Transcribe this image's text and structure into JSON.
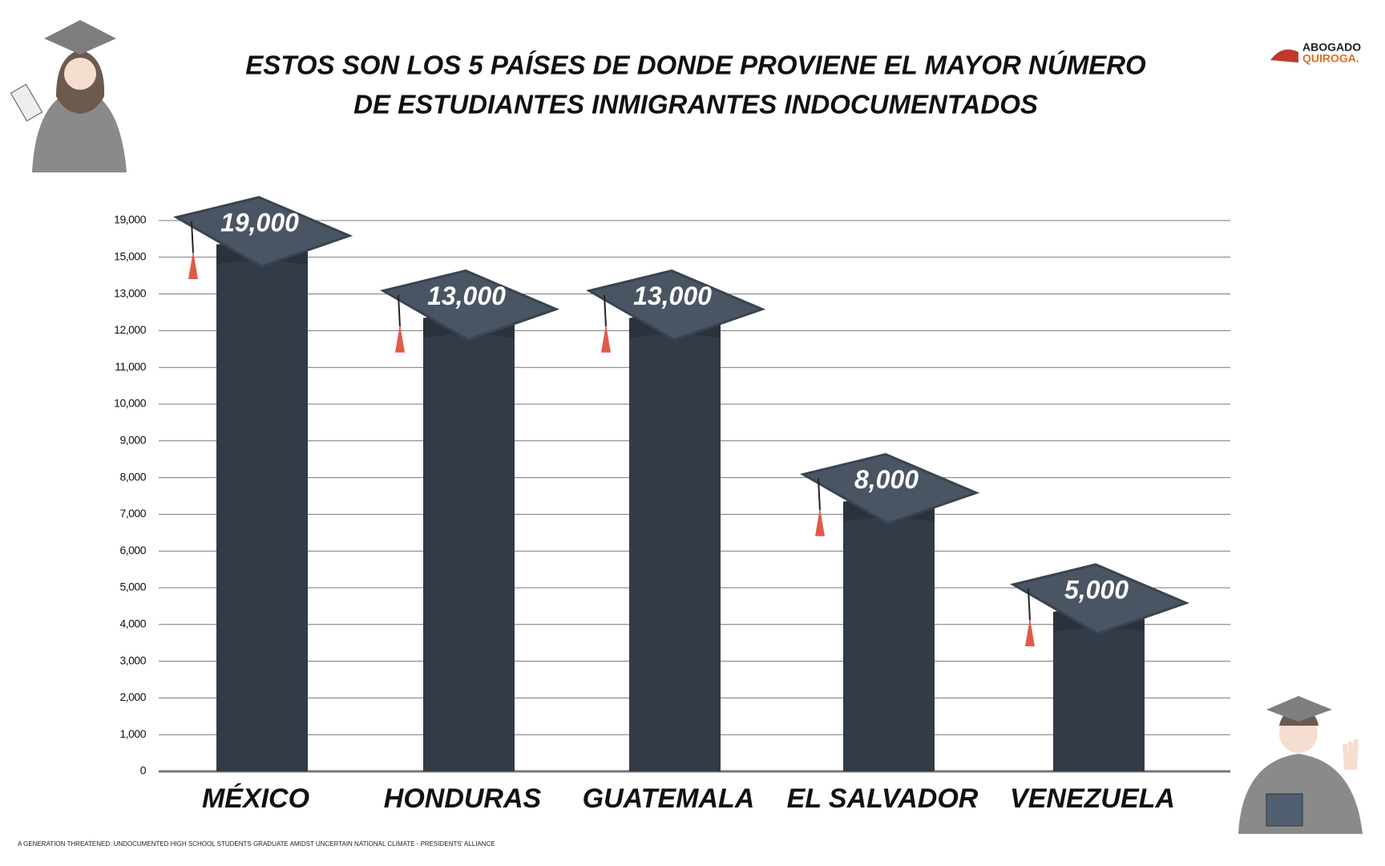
{
  "chart_data": {
    "type": "bar",
    "title": [
      "ESTOS SON LOS 5 PAÍSES DE DONDE PROVIENE EL MAYOR NÚMERO",
      "DE ESTUDIANTES INMIGRANTES INDOCUMENTADOS"
    ],
    "categories": [
      "MÉXICO",
      "HONDURAS",
      "GUATEMALA",
      "EL SALVADOR",
      "VENEZUELA"
    ],
    "values": [
      19000,
      13000,
      13000,
      8000,
      5000
    ],
    "value_labels": [
      "19,000",
      "13,000",
      "13,000",
      "8,000",
      "5,000"
    ],
    "color": "#323b47",
    "ylim": [
      0,
      19000
    ],
    "yticks": [
      0,
      {
        "value": 1000,
        "label": "1,000"
      },
      {
        "value": 2000,
        "label": "2,000"
      },
      {
        "value": 3000,
        "label": "3,000"
      },
      {
        "value": 4000,
        "label": "4,000"
      },
      {
        "value": 5000,
        "label": "5,000"
      },
      {
        "value": 6000,
        "label": "6,000"
      },
      {
        "value": 7000,
        "label": "7,000"
      },
      {
        "value": 8000,
        "label": "8,000"
      },
      {
        "value": 9000,
        "label": "9,000"
      },
      {
        "value": 10000,
        "label": "10,000"
      },
      {
        "value": 11000,
        "label": "11,000"
      },
      {
        "value": 12000,
        "label": "12,000"
      },
      {
        "value": 13000,
        "label": "13,000"
      },
      {
        "value": 15000,
        "label": "15,000"
      },
      {
        "value": 19000,
        "label": "19,000"
      }
    ],
    "grid": true,
    "source": "A GENERATION THREATENED: UNDOCUMENTED HIGH SCHOOL STUDENTS GRADUATE AMIDST UNCERTAIN NATIONAL CLIMATE - PRESIDENTS' ALLIANCE",
    "logo": [
      "ABOGADO",
      "QUIROGA."
    ]
  }
}
